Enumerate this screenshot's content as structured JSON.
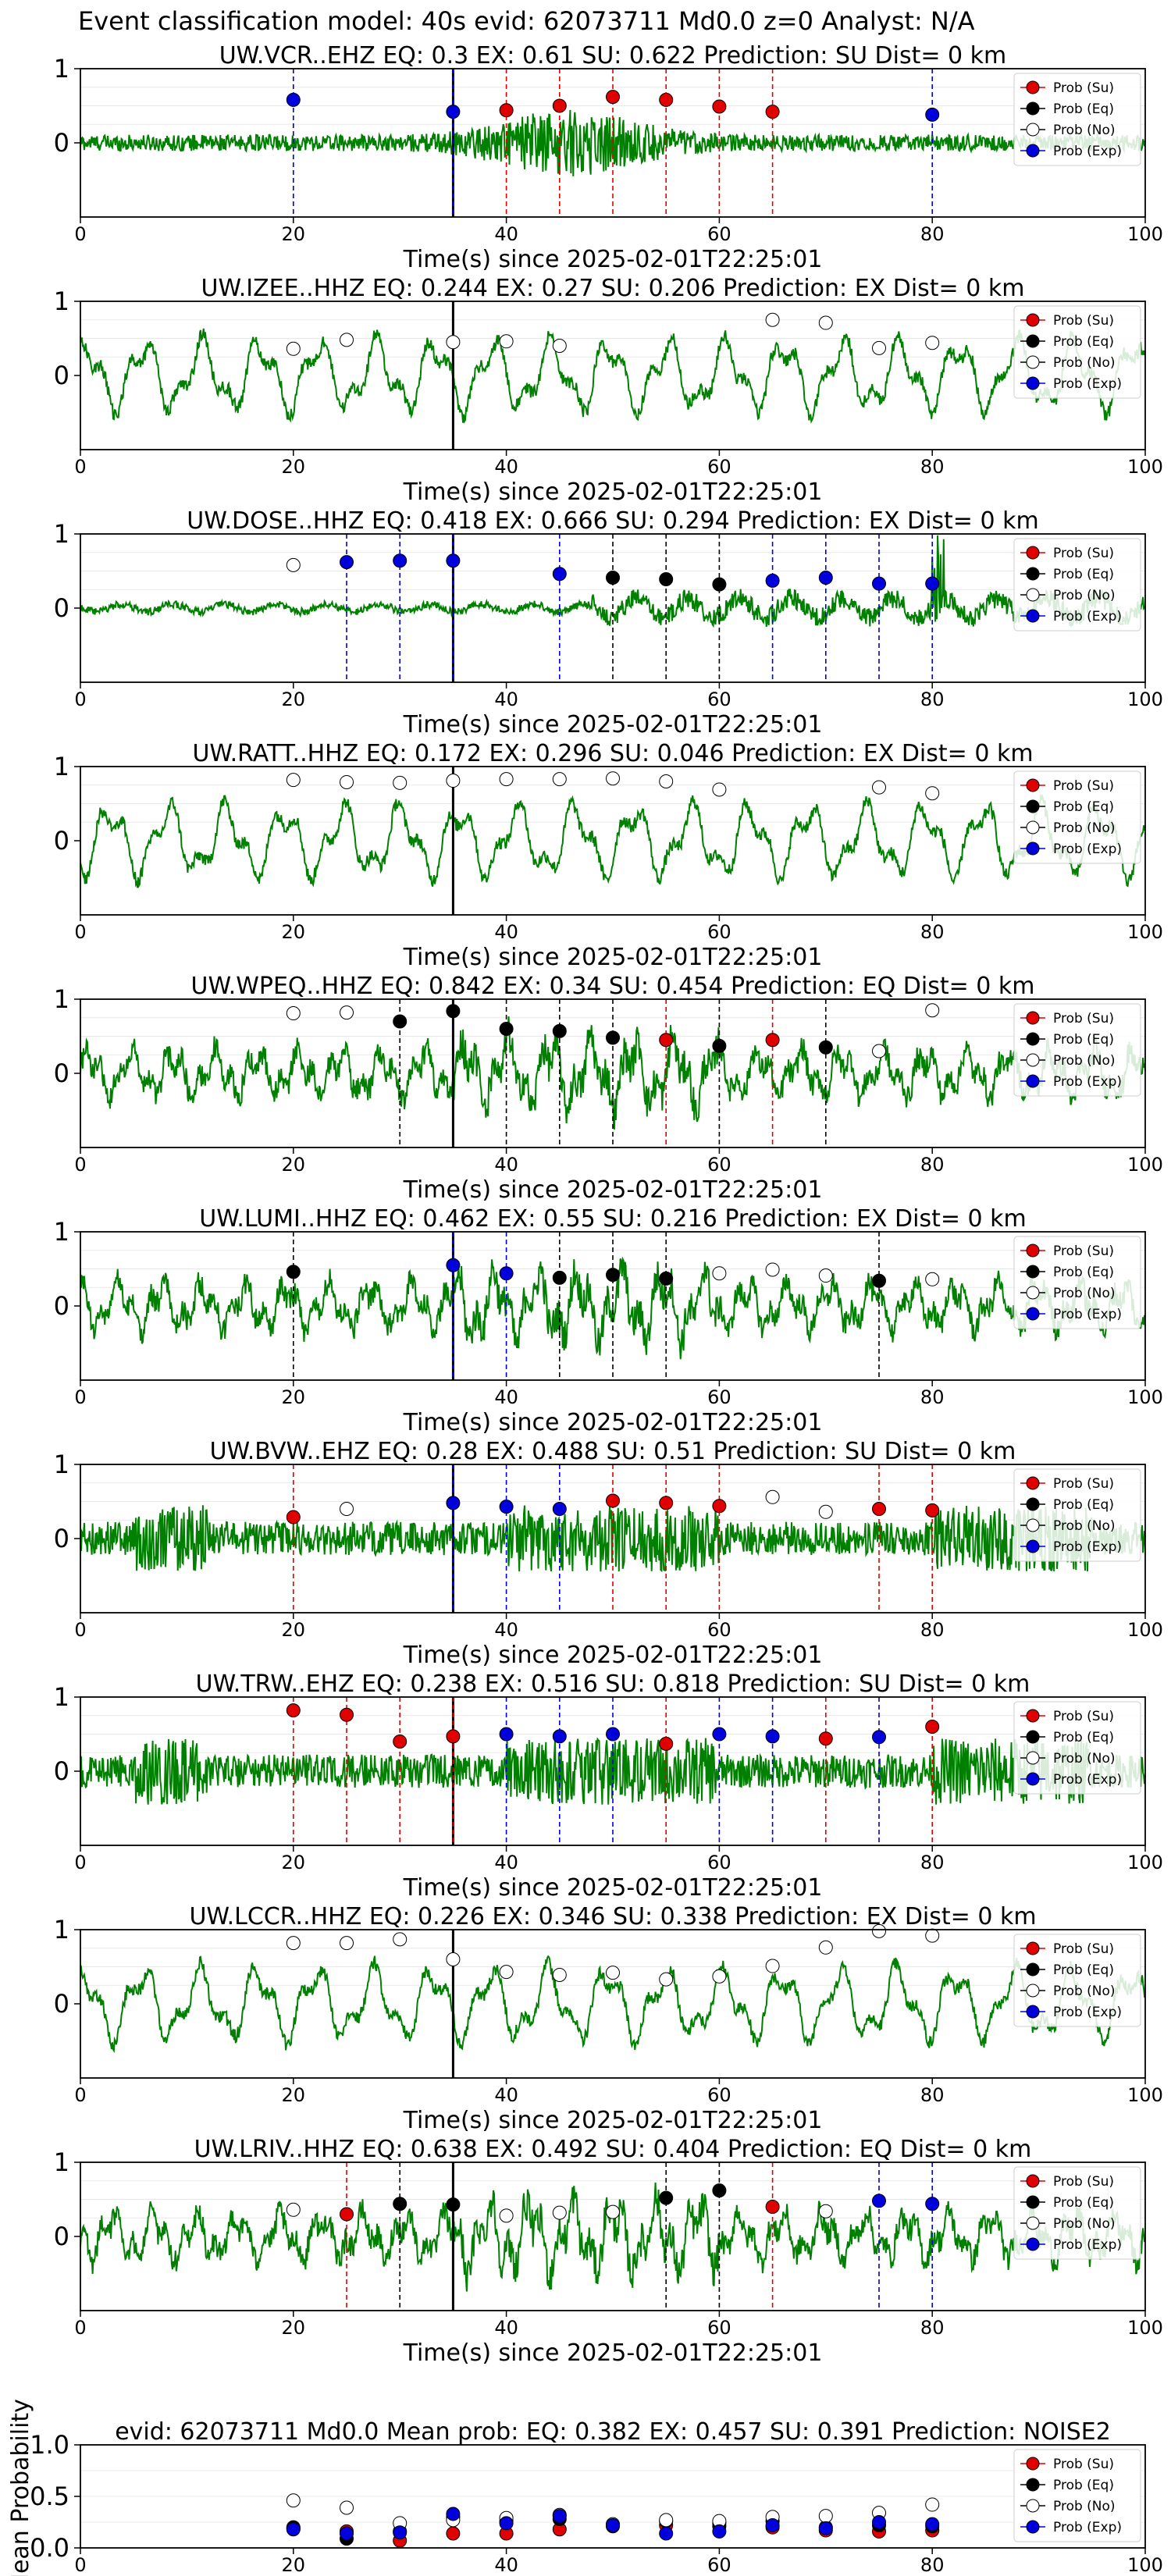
{
  "suptitle": "Event classification model: 40s evid: 62073711 Md0.0 z=0 Analyst: N/A",
  "legend": [
    "Prob (Su)",
    "Prob (Eq)",
    "Prob (No)",
    "Prob (Exp)"
  ],
  "colors": {
    "su": "#e00000",
    "eq": "#000000",
    "no": "#ffffff",
    "exp": "#0000dd",
    "trace": "#008000",
    "pick": "#000000"
  },
  "x_ticks": [
    "0",
    "20",
    "40",
    "60",
    "80",
    "100"
  ],
  "y_ticks": [
    "0",
    "1"
  ],
  "xlabel": "Time(s) since 2025-02-01T22:25:01",
  "chart_data": [
    {
      "type": "line",
      "title": "UW.VCR..EHZ   EQ: 0.3  EX: 0.61  SU: 0.622   Prediction: SU    Dist= 0 km",
      "xlim": [
        0,
        100
      ],
      "ylim": [
        -1,
        1
      ],
      "pick_time": 35,
      "waveform": "burst",
      "markers": [
        {
          "x": 20,
          "cls": "exp",
          "p": 0.58
        },
        {
          "x": 35,
          "cls": "exp",
          "p": 0.42
        },
        {
          "x": 40,
          "cls": "su",
          "p": 0.44
        },
        {
          "x": 45,
          "cls": "su",
          "p": 0.5
        },
        {
          "x": 50,
          "cls": "su",
          "p": 0.62
        },
        {
          "x": 55,
          "cls": "su",
          "p": 0.58
        },
        {
          "x": 60,
          "cls": "su",
          "p": 0.49
        },
        {
          "x": 65,
          "cls": "su",
          "p": 0.42
        },
        {
          "x": 80,
          "cls": "exp",
          "p": 0.38
        }
      ]
    },
    {
      "type": "line",
      "title": "UW.IZEE..HHZ   EQ: 0.244  EX: 0.27  SU: 0.206   Prediction: EX    Dist= 0 km",
      "xlim": [
        0,
        100
      ],
      "ylim": [
        -1,
        1
      ],
      "pick_time": 35,
      "waveform": "slow",
      "markers": [
        {
          "x": 20,
          "cls": "no",
          "p": 0.36
        },
        {
          "x": 25,
          "cls": "no",
          "p": 0.48
        },
        {
          "x": 35,
          "cls": "no",
          "p": 0.45
        },
        {
          "x": 40,
          "cls": "no",
          "p": 0.46
        },
        {
          "x": 45,
          "cls": "no",
          "p": 0.4
        },
        {
          "x": 65,
          "cls": "no",
          "p": 0.75
        },
        {
          "x": 70,
          "cls": "no",
          "p": 0.71
        },
        {
          "x": 75,
          "cls": "no",
          "p": 0.37
        },
        {
          "x": 80,
          "cls": "no",
          "p": 0.44
        }
      ]
    },
    {
      "type": "line",
      "title": "UW.DOSE..HHZ   EQ: 0.418  EX: 0.666  SU: 0.294   Prediction: EX    Dist= 0 km",
      "xlim": [
        0,
        100
      ],
      "ylim": [
        -1,
        1
      ],
      "pick_time": 35,
      "waveform": "quiet",
      "markers": [
        {
          "x": 20,
          "cls": "no",
          "p": 0.58
        },
        {
          "x": 25,
          "cls": "exp",
          "p": 0.62
        },
        {
          "x": 30,
          "cls": "exp",
          "p": 0.64
        },
        {
          "x": 35,
          "cls": "exp",
          "p": 0.64
        },
        {
          "x": 45,
          "cls": "exp",
          "p": 0.46
        },
        {
          "x": 50,
          "cls": "eq",
          "p": 0.41
        },
        {
          "x": 55,
          "cls": "eq",
          "p": 0.39
        },
        {
          "x": 60,
          "cls": "eq",
          "p": 0.32
        },
        {
          "x": 65,
          "cls": "exp",
          "p": 0.37
        },
        {
          "x": 70,
          "cls": "exp",
          "p": 0.41
        },
        {
          "x": 75,
          "cls": "exp",
          "p": 0.33
        },
        {
          "x": 80,
          "cls": "exp",
          "p": 0.33
        }
      ]
    },
    {
      "type": "line",
      "title": "UW.RATT..HHZ   EQ: 0.172  EX: 0.296  SU: 0.046   Prediction: EX    Dist= 0 km",
      "xlim": [
        0,
        100
      ],
      "ylim": [
        -1,
        1
      ],
      "pick_time": 35,
      "waveform": "slow",
      "markers": [
        {
          "x": 20,
          "cls": "no",
          "p": 0.82
        },
        {
          "x": 25,
          "cls": "no",
          "p": 0.79
        },
        {
          "x": 30,
          "cls": "no",
          "p": 0.78
        },
        {
          "x": 35,
          "cls": "no",
          "p": 0.81
        },
        {
          "x": 40,
          "cls": "no",
          "p": 0.83
        },
        {
          "x": 45,
          "cls": "no",
          "p": 0.83
        },
        {
          "x": 50,
          "cls": "no",
          "p": 0.84
        },
        {
          "x": 55,
          "cls": "no",
          "p": 0.8
        },
        {
          "x": 60,
          "cls": "no",
          "p": 0.69
        },
        {
          "x": 75,
          "cls": "no",
          "p": 0.72
        },
        {
          "x": 80,
          "cls": "no",
          "p": 0.64
        }
      ]
    },
    {
      "type": "line",
      "title": "UW.WPEQ..HHZ   EQ: 0.842  EX: 0.34  SU: 0.454   Prediction: EQ    Dist= 0 km",
      "xlim": [
        0,
        100
      ],
      "ylim": [
        -1,
        1
      ],
      "pick_time": 35,
      "waveform": "medium",
      "markers": [
        {
          "x": 20,
          "cls": "no",
          "p": 0.81
        },
        {
          "x": 25,
          "cls": "no",
          "p": 0.82
        },
        {
          "x": 30,
          "cls": "eq",
          "p": 0.7
        },
        {
          "x": 35,
          "cls": "eq",
          "p": 0.84
        },
        {
          "x": 40,
          "cls": "eq",
          "p": 0.6
        },
        {
          "x": 45,
          "cls": "eq",
          "p": 0.57
        },
        {
          "x": 50,
          "cls": "eq",
          "p": 0.48
        },
        {
          "x": 55,
          "cls": "su",
          "p": 0.45
        },
        {
          "x": 60,
          "cls": "eq",
          "p": 0.37
        },
        {
          "x": 65,
          "cls": "su",
          "p": 0.45
        },
        {
          "x": 70,
          "cls": "eq",
          "p": 0.35
        },
        {
          "x": 75,
          "cls": "no",
          "p": 0.3
        },
        {
          "x": 80,
          "cls": "no",
          "p": 0.85
        }
      ]
    },
    {
      "type": "line",
      "title": "UW.LUMI..HHZ   EQ: 0.462  EX: 0.55  SU: 0.216   Prediction: EX    Dist= 0 km",
      "xlim": [
        0,
        100
      ],
      "ylim": [
        -1,
        1
      ],
      "pick_time": 35,
      "waveform": "medium",
      "markers": [
        {
          "x": 20,
          "cls": "eq",
          "p": 0.46
        },
        {
          "x": 35,
          "cls": "exp",
          "p": 0.55
        },
        {
          "x": 40,
          "cls": "exp",
          "p": 0.44
        },
        {
          "x": 45,
          "cls": "eq",
          "p": 0.38
        },
        {
          "x": 50,
          "cls": "eq",
          "p": 0.42
        },
        {
          "x": 55,
          "cls": "eq",
          "p": 0.37
        },
        {
          "x": 60,
          "cls": "no",
          "p": 0.44
        },
        {
          "x": 65,
          "cls": "no",
          "p": 0.49
        },
        {
          "x": 70,
          "cls": "no",
          "p": 0.41
        },
        {
          "x": 75,
          "cls": "eq",
          "p": 0.34
        },
        {
          "x": 80,
          "cls": "no",
          "p": 0.36
        }
      ]
    },
    {
      "type": "line",
      "title": "UW.BVW..EHZ   EQ: 0.28  EX: 0.488  SU: 0.51   Prediction: SU    Dist= 0 km",
      "xlim": [
        0,
        100
      ],
      "ylim": [
        -1,
        1
      ],
      "pick_time": 35,
      "waveform": "noisy",
      "markers": [
        {
          "x": 20,
          "cls": "su",
          "p": 0.29
        },
        {
          "x": 25,
          "cls": "no",
          "p": 0.4
        },
        {
          "x": 35,
          "cls": "exp",
          "p": 0.48
        },
        {
          "x": 40,
          "cls": "exp",
          "p": 0.43
        },
        {
          "x": 45,
          "cls": "exp",
          "p": 0.4
        },
        {
          "x": 50,
          "cls": "su",
          "p": 0.51
        },
        {
          "x": 55,
          "cls": "su",
          "p": 0.48
        },
        {
          "x": 60,
          "cls": "su",
          "p": 0.44
        },
        {
          "x": 65,
          "cls": "no",
          "p": 0.56
        },
        {
          "x": 70,
          "cls": "no",
          "p": 0.36
        },
        {
          "x": 75,
          "cls": "su",
          "p": 0.4
        },
        {
          "x": 80,
          "cls": "su",
          "p": 0.38
        }
      ]
    },
    {
      "type": "line",
      "title": "UW.TRW..EHZ   EQ: 0.238  EX: 0.516  SU: 0.818   Prediction: SU    Dist= 0 km",
      "xlim": [
        0,
        100
      ],
      "ylim": [
        -1,
        1
      ],
      "pick_time": 35,
      "waveform": "noisy",
      "markers": [
        {
          "x": 20,
          "cls": "su",
          "p": 0.82
        },
        {
          "x": 25,
          "cls": "su",
          "p": 0.76
        },
        {
          "x": 30,
          "cls": "su",
          "p": 0.4
        },
        {
          "x": 35,
          "cls": "su",
          "p": 0.47
        },
        {
          "x": 40,
          "cls": "exp",
          "p": 0.5
        },
        {
          "x": 45,
          "cls": "exp",
          "p": 0.47
        },
        {
          "x": 50,
          "cls": "exp",
          "p": 0.5
        },
        {
          "x": 55,
          "cls": "su",
          "p": 0.37
        },
        {
          "x": 60,
          "cls": "exp",
          "p": 0.5
        },
        {
          "x": 65,
          "cls": "exp",
          "p": 0.47
        },
        {
          "x": 70,
          "cls": "su",
          "p": 0.44
        },
        {
          "x": 75,
          "cls": "exp",
          "p": 0.46
        },
        {
          "x": 80,
          "cls": "su",
          "p": 0.6
        }
      ]
    },
    {
      "type": "line",
      "title": "UW.LCCR..HHZ   EQ: 0.226  EX: 0.346  SU: 0.338   Prediction: EX    Dist= 0 km",
      "xlim": [
        0,
        100
      ],
      "ylim": [
        -1,
        1
      ],
      "pick_time": 35,
      "waveform": "slow",
      "markers": [
        {
          "x": 20,
          "cls": "no",
          "p": 0.82
        },
        {
          "x": 25,
          "cls": "no",
          "p": 0.82
        },
        {
          "x": 30,
          "cls": "no",
          "p": 0.87
        },
        {
          "x": 35,
          "cls": "no",
          "p": 0.6
        },
        {
          "x": 40,
          "cls": "no",
          "p": 0.43
        },
        {
          "x": 45,
          "cls": "no",
          "p": 0.39
        },
        {
          "x": 50,
          "cls": "no",
          "p": 0.42
        },
        {
          "x": 55,
          "cls": "no",
          "p": 0.33
        },
        {
          "x": 60,
          "cls": "no",
          "p": 0.37
        },
        {
          "x": 65,
          "cls": "no",
          "p": 0.51
        },
        {
          "x": 70,
          "cls": "no",
          "p": 0.76
        },
        {
          "x": 75,
          "cls": "no",
          "p": 0.98
        },
        {
          "x": 80,
          "cls": "no",
          "p": 0.92
        }
      ]
    },
    {
      "type": "line",
      "title": "UW.LRIV..HHZ   EQ: 0.638  EX: 0.492  SU: 0.404   Prediction: EQ    Dist= 0 km",
      "xlim": [
        0,
        100
      ],
      "ylim": [
        -1,
        1
      ],
      "pick_time": 35,
      "waveform": "medium",
      "markers": [
        {
          "x": 20,
          "cls": "no",
          "p": 0.36
        },
        {
          "x": 25,
          "cls": "su",
          "p": 0.3
        },
        {
          "x": 30,
          "cls": "eq",
          "p": 0.44
        },
        {
          "x": 35,
          "cls": "eq",
          "p": 0.43
        },
        {
          "x": 40,
          "cls": "no",
          "p": 0.28
        },
        {
          "x": 45,
          "cls": "no",
          "p": 0.32
        },
        {
          "x": 50,
          "cls": "no",
          "p": 0.33
        },
        {
          "x": 55,
          "cls": "eq",
          "p": 0.52
        },
        {
          "x": 60,
          "cls": "eq",
          "p": 0.62
        },
        {
          "x": 65,
          "cls": "su",
          "p": 0.4
        },
        {
          "x": 70,
          "cls": "no",
          "p": 0.34
        },
        {
          "x": 75,
          "cls": "exp",
          "p": 0.48
        },
        {
          "x": 80,
          "cls": "exp",
          "p": 0.44
        }
      ]
    },
    {
      "type": "scatter",
      "title": "evid: 62073711  Md0.0    Mean prob:    EQ: 0.382   EX: 0.457   SU: 0.391    Prediction: NOISE2",
      "ylabel": "Mean Probability",
      "xlim": [
        0,
        100
      ],
      "ylim": [
        0,
        1
      ],
      "y_ticks": [
        "0.0",
        "0.5",
        "1.0"
      ],
      "series": [
        {
          "name": "Prob (Su)",
          "cls": "su",
          "x": [
            20,
            25,
            30,
            35,
            40,
            45,
            50,
            55,
            60,
            65,
            70,
            75,
            80
          ],
          "y": [
            0.19,
            0.16,
            0.07,
            0.14,
            0.14,
            0.18,
            0.22,
            0.22,
            0.21,
            0.2,
            0.17,
            0.16,
            0.17
          ]
        },
        {
          "name": "Prob (Eq)",
          "cls": "eq",
          "x": [
            20,
            25,
            30,
            35,
            40,
            45,
            50,
            55,
            60,
            65,
            70,
            75,
            80
          ],
          "y": [
            0.2,
            0.09,
            0.16,
            0.3,
            0.26,
            0.28,
            0.21,
            0.26,
            0.24,
            0.26,
            0.2,
            0.22,
            0.21
          ]
        },
        {
          "name": "Prob (No)",
          "cls": "no",
          "x": [
            20,
            25,
            30,
            35,
            40,
            45,
            50,
            55,
            60,
            65,
            70,
            75,
            80
          ],
          "y": [
            0.46,
            0.39,
            0.24,
            0.27,
            0.29,
            0.32,
            0.23,
            0.27,
            0.26,
            0.3,
            0.31,
            0.34,
            0.42
          ]
        },
        {
          "name": "Prob (Exp)",
          "cls": "exp",
          "x": [
            20,
            25,
            30,
            35,
            40,
            45,
            50,
            55,
            60,
            65,
            70,
            75,
            80
          ],
          "y": [
            0.18,
            0.14,
            0.15,
            0.33,
            0.24,
            0.31,
            0.22,
            0.14,
            0.16,
            0.22,
            0.19,
            0.25,
            0.23
          ]
        }
      ]
    }
  ]
}
